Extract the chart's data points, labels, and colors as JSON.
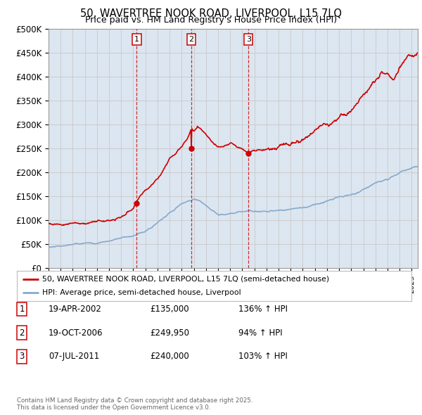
{
  "title": "50, WAVERTREE NOOK ROAD, LIVERPOOL, L15 7LQ",
  "subtitle": "Price paid vs. HM Land Registry's House Price Index (HPI)",
  "ylabel_ticks": [
    "£0",
    "£50K",
    "£100K",
    "£150K",
    "£200K",
    "£250K",
    "£300K",
    "£350K",
    "£400K",
    "£450K",
    "£500K"
  ],
  "ylim": [
    0,
    500000
  ],
  "xlim_start": 1995.0,
  "xlim_end": 2025.5,
  "property_color": "#cc0000",
  "hpi_color": "#88aacc",
  "grid_color": "#cccccc",
  "bg_color": "#dce6f1",
  "sale_markers": [
    {
      "year": 2002.29,
      "price": 135000,
      "label": "1"
    },
    {
      "year": 2006.8,
      "price": 249950,
      "label": "2"
    },
    {
      "year": 2011.51,
      "price": 240000,
      "label": "3"
    }
  ],
  "legend_property": "50, WAVERTREE NOOK ROAD, LIVERPOOL, L15 7LQ (semi-detached house)",
  "legend_hpi": "HPI: Average price, semi-detached house, Liverpool",
  "table_rows": [
    {
      "num": "1",
      "date": "19-APR-2002",
      "price": "£135,000",
      "change": "136% ↑ HPI"
    },
    {
      "num": "2",
      "date": "19-OCT-2006",
      "price": "£249,950",
      "change": "94% ↑ HPI"
    },
    {
      "num": "3",
      "date": "07-JUL-2011",
      "price": "£240,000",
      "change": "103% ↑ HPI"
    }
  ],
  "footnote": "Contains HM Land Registry data © Crown copyright and database right 2025.\nThis data is licensed under the Open Government Licence v3.0.",
  "hpi_knots_t": [
    1995,
    1996,
    1997,
    1998,
    1999,
    2000,
    2001,
    2002,
    2003,
    2004,
    2005,
    2006,
    2006.8,
    2007,
    2007.5,
    2008,
    2009,
    2010,
    2011,
    2012,
    2013,
    2014,
    2015,
    2016,
    2017,
    2018,
    2019,
    2020,
    2021,
    2022,
    2023,
    2024,
    2025.5
  ],
  "hpi_knots_v": [
    43000,
    44000,
    46000,
    48000,
    50000,
    54000,
    60000,
    67000,
    78000,
    95000,
    115000,
    133000,
    140000,
    143000,
    140000,
    130000,
    112000,
    115000,
    118000,
    115000,
    115000,
    118000,
    120000,
    123000,
    130000,
    138000,
    145000,
    148000,
    160000,
    175000,
    185000,
    200000,
    215000
  ],
  "prop_knots_t": [
    1995,
    1996,
    1997,
    1998,
    1999,
    2000,
    2001,
    2002.0,
    2002.29,
    2002.5,
    2003,
    2004,
    2005,
    2006.0,
    2006.5,
    2006.8,
    2007.0,
    2007.3,
    2007.5,
    2008.0,
    2008.5,
    2009.0,
    2009.5,
    2010.0,
    2010.5,
    2011.0,
    2011.51,
    2012.0,
    2013,
    2014,
    2015,
    2016,
    2017,
    2018,
    2019,
    2020,
    2021,
    2022,
    2022.5,
    2023,
    2023.5,
    2024,
    2024.5,
    2025.5
  ],
  "prop_knots_v": [
    93000,
    93000,
    94000,
    95000,
    97000,
    99000,
    105000,
    120000,
    135000,
    145000,
    160000,
    185000,
    230000,
    258000,
    275000,
    295000,
    290000,
    300000,
    295000,
    280000,
    260000,
    250000,
    250000,
    255000,
    248000,
    245000,
    240000,
    245000,
    250000,
    260000,
    268000,
    275000,
    295000,
    305000,
    318000,
    330000,
    360000,
    395000,
    415000,
    415000,
    400000,
    425000,
    445000,
    450000
  ]
}
